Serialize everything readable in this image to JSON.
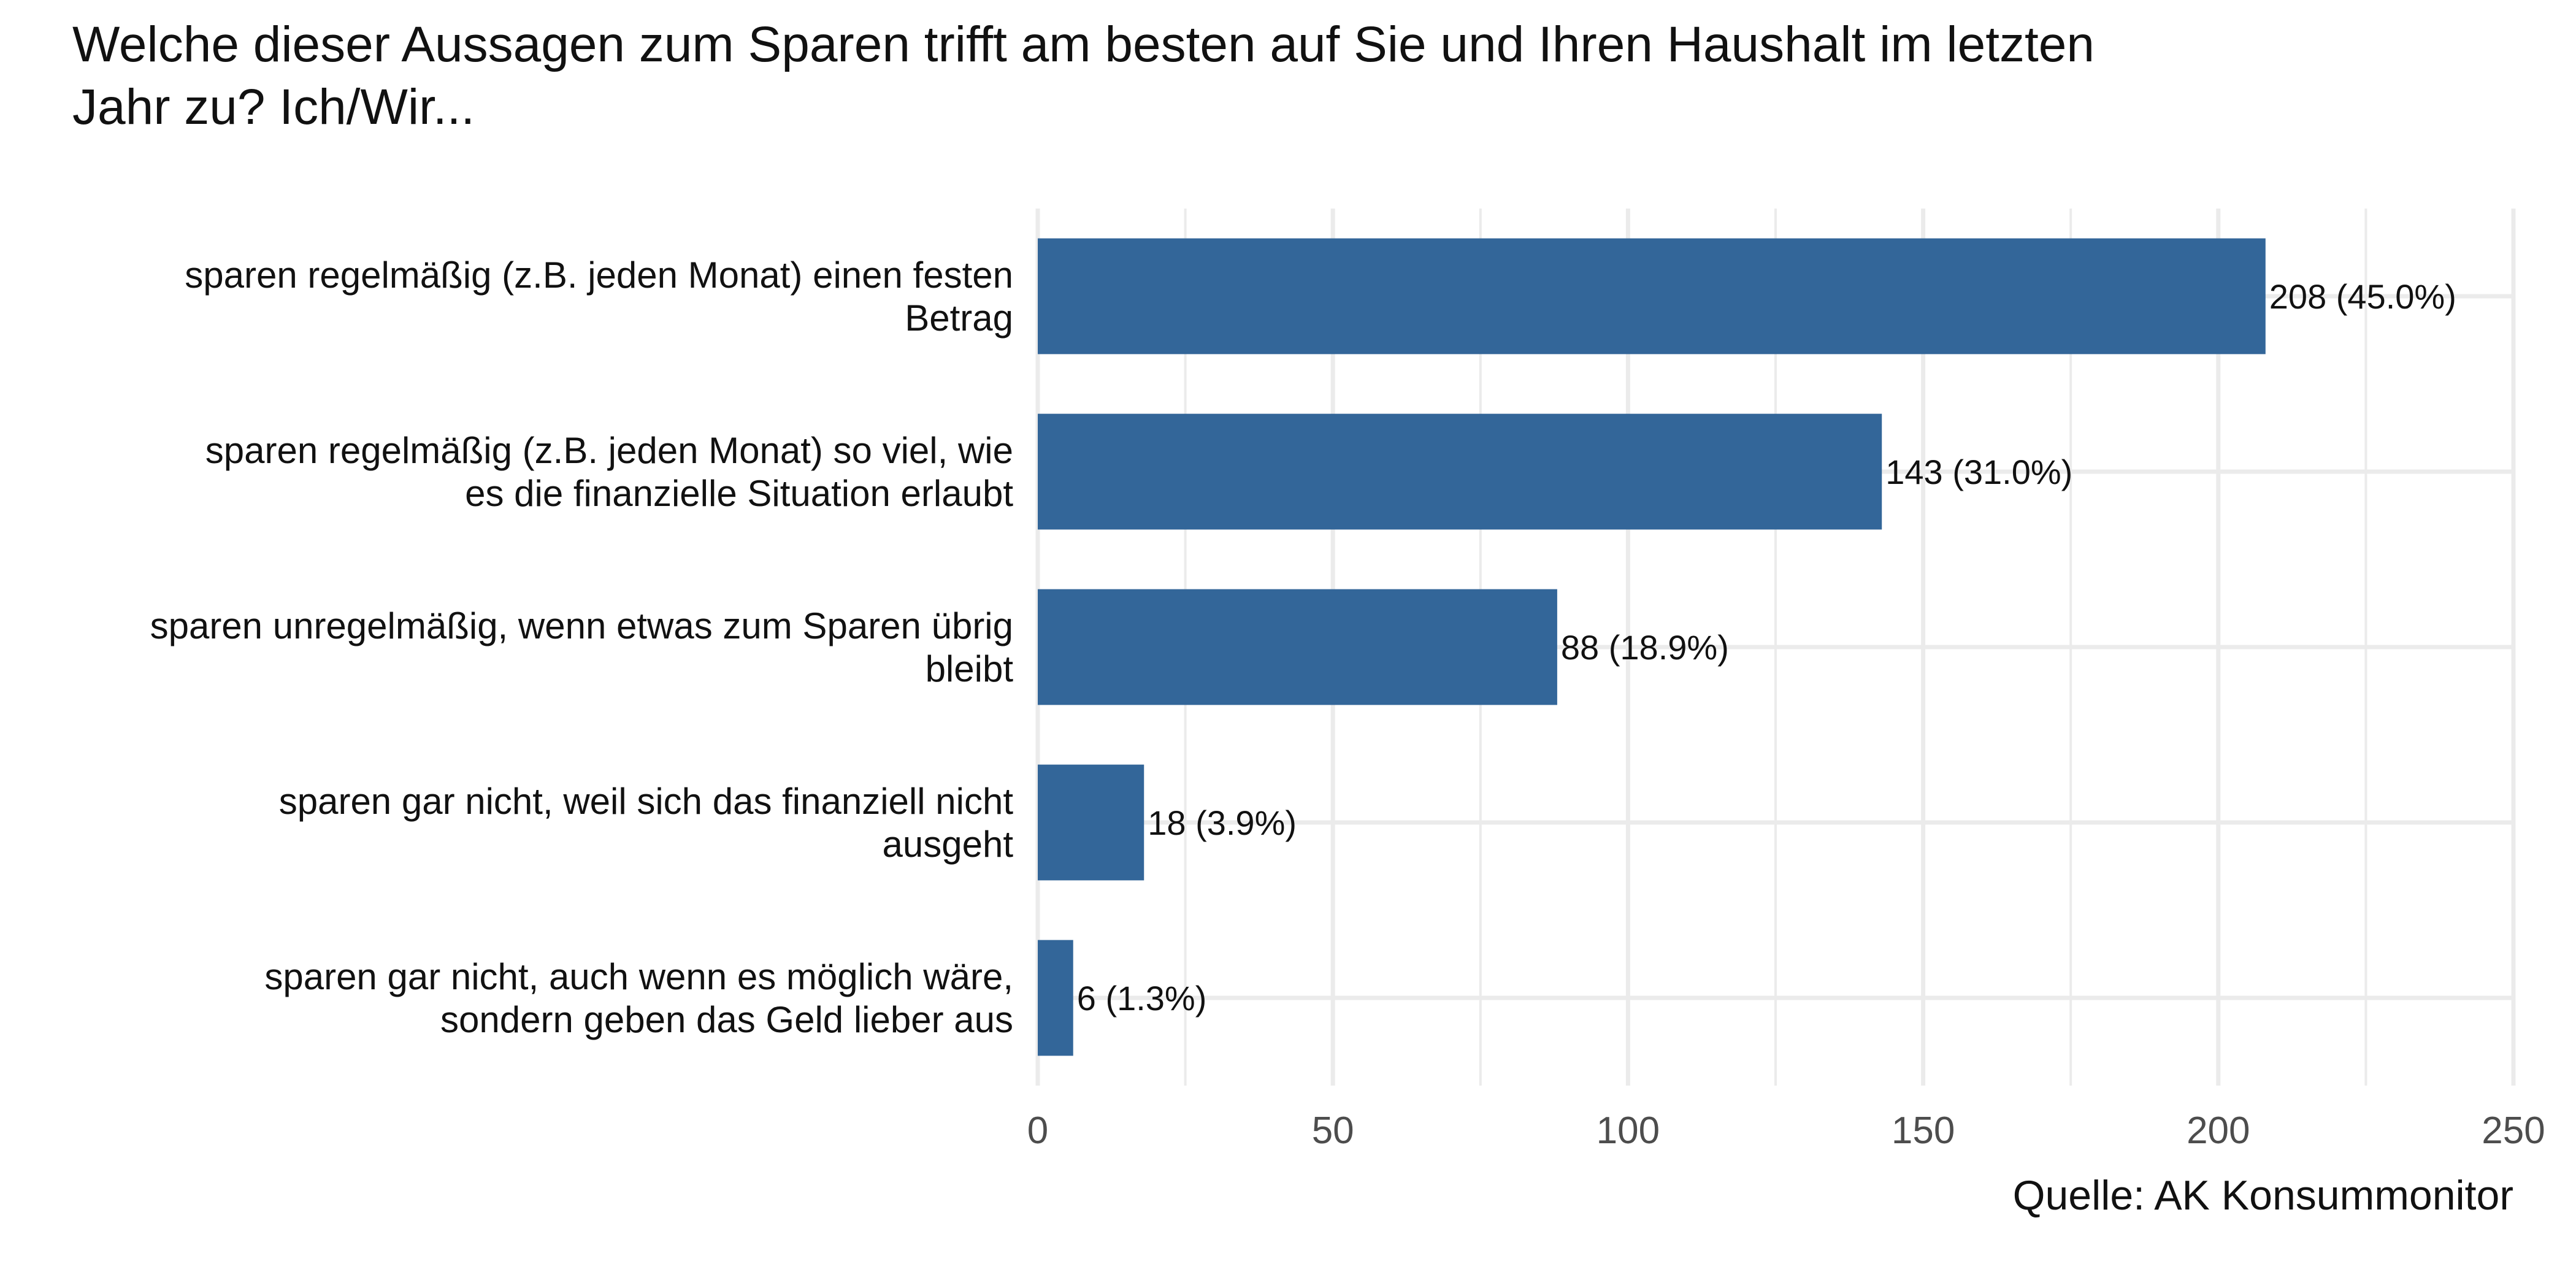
{
  "chart_data": {
    "type": "bar",
    "orientation": "horizontal",
    "title_lines": [
      "Welche dieser Aussagen zum Sparen trifft am besten auf Sie und Ihren Haushalt im letzten",
      "Jahr zu? Ich/Wir..."
    ],
    "categories": [
      {
        "lines": [
          "sparen regelmäßig (z.B. jeden Monat) einen festen",
          "Betrag"
        ]
      },
      {
        "lines": [
          "sparen regelmäßig (z.B. jeden Monat) so viel, wie",
          "es die finanzielle Situation erlaubt"
        ]
      },
      {
        "lines": [
          "sparen unregelmäßig, wenn etwas zum Sparen übrig",
          "bleibt"
        ]
      },
      {
        "lines": [
          "sparen gar nicht, weil sich das finanziell nicht",
          "ausgeht"
        ]
      },
      {
        "lines": [
          "sparen gar nicht, auch wenn es möglich wäre,",
          "sondern geben das Geld lieber aus"
        ]
      }
    ],
    "values": [
      208,
      143,
      88,
      18,
      6
    ],
    "data_labels": [
      "208 (45.0%)",
      "143 (31.0%)",
      "88 (18.9%)",
      "18 (3.9%)",
      "6 (1.3%)"
    ],
    "xlim": [
      0,
      250
    ],
    "xticks": [
      0,
      50,
      100,
      150,
      200,
      250
    ],
    "xtick_labels": [
      "0",
      "50",
      "100",
      "150",
      "200",
      "250"
    ],
    "grid": true,
    "source": "Quelle: AK Konsummonitor",
    "bar_color": "#336699",
    "grid_color": "#ebebeb"
  }
}
